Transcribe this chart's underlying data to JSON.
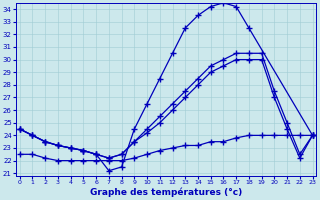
{
  "xlabel": "Graphe des températures (°c)",
  "bg_color": "#cce8ec",
  "line_color": "#0000bb",
  "grid_color": "#a0ccd4",
  "xlim_min": -0.3,
  "xlim_max": 23.3,
  "ylim_min": 20.8,
  "ylim_max": 34.5,
  "yticks": [
    21,
    22,
    23,
    24,
    25,
    26,
    27,
    28,
    29,
    30,
    31,
    32,
    33,
    34
  ],
  "xticks": [
    0,
    1,
    2,
    3,
    4,
    5,
    6,
    7,
    8,
    9,
    10,
    11,
    12,
    13,
    14,
    15,
    16,
    17,
    18,
    19,
    20,
    21,
    22,
    23
  ],
  "curves": [
    {
      "x": [
        0,
        1,
        2,
        3,
        4,
        5,
        6,
        7,
        8,
        9,
        10,
        11,
        12,
        13,
        14,
        15,
        16,
        17,
        18,
        23
      ],
      "y": [
        24.5,
        24.0,
        23.5,
        23.2,
        23.0,
        22.8,
        22.5,
        21.2,
        21.5,
        24.5,
        26.5,
        28.5,
        30.5,
        32.5,
        33.5,
        34.2,
        34.5,
        34.2,
        32.5,
        24.0
      ]
    },
    {
      "x": [
        0,
        1,
        2,
        3,
        4,
        5,
        6,
        7,
        8,
        9,
        10,
        11,
        12,
        13,
        14,
        15,
        16,
        17,
        18,
        19,
        20,
        21,
        22,
        23
      ],
      "y": [
        24.5,
        24.0,
        23.5,
        23.2,
        23.0,
        22.8,
        22.5,
        22.2,
        22.5,
        23.5,
        24.5,
        25.5,
        26.5,
        27.5,
        28.5,
        29.5,
        30.0,
        30.5,
        30.5,
        30.5,
        27.5,
        25.0,
        22.5,
        24.0
      ]
    },
    {
      "x": [
        0,
        1,
        2,
        3,
        4,
        5,
        6,
        7,
        8,
        9,
        10,
        11,
        12,
        13,
        14,
        15,
        16,
        17,
        18,
        19,
        20,
        21,
        22,
        23
      ],
      "y": [
        24.5,
        24.0,
        23.5,
        23.2,
        23.0,
        22.8,
        22.5,
        22.2,
        22.5,
        23.5,
        24.2,
        25.0,
        26.0,
        27.0,
        28.0,
        29.0,
        29.5,
        30.0,
        30.0,
        30.0,
        27.0,
        24.5,
        22.2,
        24.0
      ]
    },
    {
      "x": [
        0,
        1,
        2,
        3,
        4,
        5,
        6,
        7,
        8,
        9,
        10,
        11,
        12,
        13,
        14,
        15,
        16,
        17,
        18,
        19,
        20,
        21,
        22,
        23
      ],
      "y": [
        22.5,
        22.5,
        22.2,
        22.0,
        22.0,
        22.0,
        22.0,
        22.0,
        22.0,
        22.2,
        22.5,
        22.8,
        23.0,
        23.2,
        23.2,
        23.5,
        23.5,
        23.8,
        24.0,
        24.0,
        24.0,
        24.0,
        24.0,
        24.0
      ]
    }
  ]
}
